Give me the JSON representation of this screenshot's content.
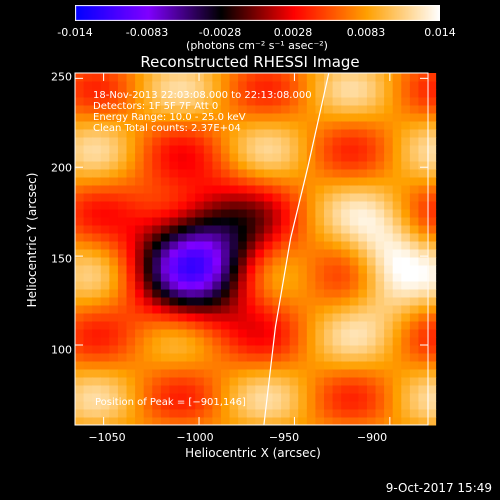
{
  "colorbar": {
    "range": [
      -0.014,
      0.014
    ],
    "ticks": [
      "-0.014",
      "-0.0083",
      "-0.0028",
      "0.0028",
      "0.0083",
      "0.014"
    ],
    "units": "(photons cm⁻² s⁻¹ asec⁻²)"
  },
  "chart_data": {
    "type": "heatmap",
    "title": "Reconstructed RHESSI Image",
    "xlabel": "Heliocentric X (arcsec)",
    "ylabel": "Heliocentric Y (arcsec)",
    "xlim": [
      -1065,
      -880
    ],
    "ylim": [
      55,
      253
    ],
    "xticks": [
      -1050,
      -1000,
      -950,
      -900
    ],
    "yticks": [
      100,
      150,
      200,
      250
    ],
    "xtick_labels": [
      "−1050",
      "−1000",
      "−950",
      "−900"
    ],
    "ytick_labels": [
      "100",
      "150",
      "200",
      "250"
    ],
    "colormap": [
      "#0000ff",
      "#8000ff",
      "#000000",
      "#ff0000",
      "#ffa000",
      "#ffffff"
    ],
    "info_lines": [
      "18-Nov-2013 22:03:08.000 to 22:13:08.000",
      "Detectors: 1F 5F 7F  Att 0",
      "Energy Range: 10.0 - 25.0 keV",
      "Clean    Total counts: 2.37E+04"
    ],
    "peak_label": "Position of Peak = [−901,146]",
    "peak": [
      -901,
      146
    ],
    "limb": [
      [
        -966,
        55
      ],
      [
        -960,
        110
      ],
      [
        -952,
        160
      ],
      [
        -943,
        200
      ],
      [
        -932,
        253
      ]
    ],
    "features": [
      {
        "kind": "negative-hole",
        "x": -1000,
        "y": 150,
        "value": -0.009
      },
      {
        "kind": "source",
        "x": -901,
        "y": 146,
        "value": 0.014
      }
    ]
  },
  "timestamp": "9-Oct-2017 15:49"
}
